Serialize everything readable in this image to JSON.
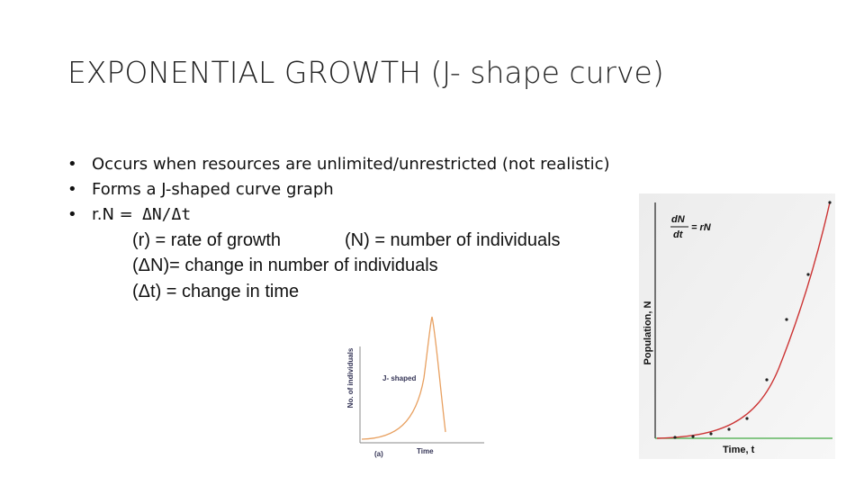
{
  "title": "EXPONENTIAL  GROWTH (J- shape curve)",
  "bullets": [
    "Occurs when resources are unlimited/unrestricted (not realistic)",
    "Forms a J-shaped curve graph",
    "r.N ="
  ],
  "formula": "ΔN/Δt",
  "definitions": [
    "(r) = rate of growth",
    "(N) = number of individuals",
    "(ΔN)= change in number of individuals",
    "(Δt) = change in time"
  ],
  "figure_left": {
    "curve_label": "J- shaped",
    "y_label": "No. of individuals",
    "x_label": "Time",
    "panel": "(a)"
  },
  "figure_right": {
    "equation_top": "dN",
    "equation_bottom": "dt",
    "equation_right": "= rN",
    "y_label": "Population, N",
    "x_label": "Time, t"
  }
}
